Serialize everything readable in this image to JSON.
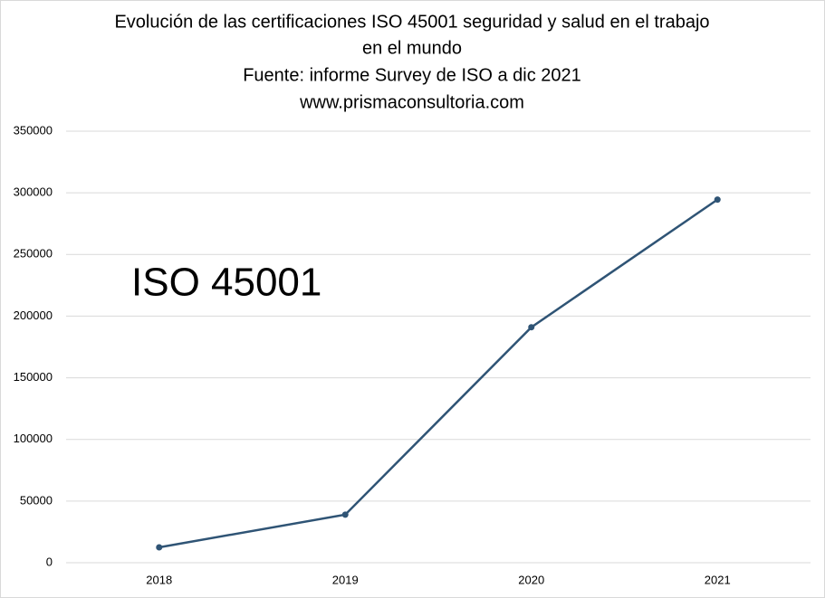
{
  "chart_data": {
    "type": "line",
    "title": [
      "Evolución de las certificaciones ISO 45001 seguridad y salud en el trabajo",
      "en el mundo",
      "Fuente: informe Survey de ISO a dic 2021",
      "www.prismaconsultoria.com"
    ],
    "annotation": "ISO 45001",
    "categories": [
      "2018",
      "2019",
      "2020",
      "2021"
    ],
    "values": [
      12500,
      39000,
      191000,
      294500
    ],
    "color": "#2f5475",
    "ylim": [
      0,
      350000
    ],
    "yticks": [
      0,
      50000,
      100000,
      150000,
      200000,
      250000,
      300000,
      350000
    ],
    "grid": true
  }
}
